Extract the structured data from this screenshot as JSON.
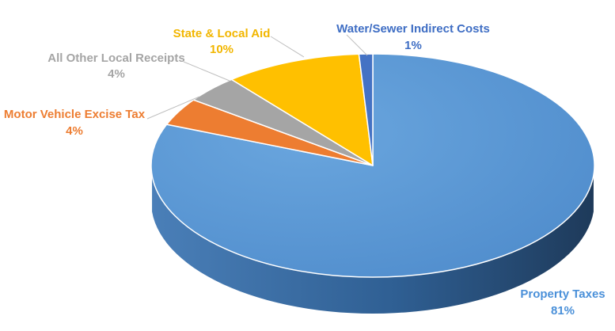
{
  "chart_data": {
    "type": "pie",
    "style": "3d",
    "slices": [
      {
        "label": "Property Taxes",
        "pct_label": "81%",
        "value": 81,
        "color": "#5b9bd5"
      },
      {
        "label": "Motor Vehicle Excise Tax",
        "pct_label": "4%",
        "value": 4,
        "color": "#ed7d31"
      },
      {
        "label": "All Other Local Receipts",
        "pct_label": "4%",
        "value": 4,
        "color": "#a5a5a5"
      },
      {
        "label": "State & Local Aid",
        "pct_label": "10%",
        "value": 10,
        "color": "#ffc000"
      },
      {
        "label": "Water/Sewer Indirect Costs",
        "pct_label": "1%",
        "value": 1,
        "color": "#4472c4"
      }
    ],
    "label_colors": {
      "Property Taxes": "#4a90d9",
      "Motor Vehicle Excise Tax": "#ed7d31",
      "All Other Local Receipts": "#a5a5a5",
      "State & Local Aid": "#f2b600",
      "Water/Sewer Indirect Costs": "#3f6ec4"
    }
  }
}
